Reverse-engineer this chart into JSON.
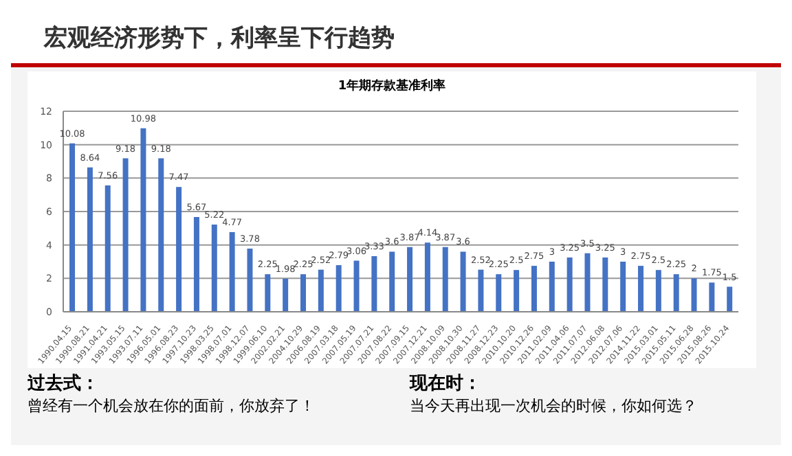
{
  "chart_data": {
    "type": "bar",
    "title": "宏观经济形势下，利率呈下行趋势",
    "subtitle": "1年期存款基准利率",
    "categories": [
      "1990.04.15",
      "1990.08.21",
      "1991.04.21",
      "1993.05.15",
      "1993.07.11",
      "1996.05.01",
      "1996.08.23",
      "1997.10.23",
      "1998.03.25",
      "1998.07.01",
      "1998.12.07",
      "1999.06.10",
      "2002.02.21",
      "2004.10.29",
      "2006.08.19",
      "2007.03.18",
      "2007.05.19",
      "2007.07.21",
      "2007.08.22",
      "2007.09.15",
      "2007.12.21",
      "2008.10.09",
      "2008.10.30",
      "2008.11.27",
      "2008.12.23",
      "2010.10.20",
      "2010.12.26",
      "2011.02.09",
      "2011.04.06",
      "2011.07.07",
      "2012.06.08",
      "2012.07.06",
      "2014.11.22",
      "2015.03.01",
      "2015.05.11",
      "2015.06.28",
      "2015.08.26",
      "2015.10.24"
    ],
    "values": [
      10.08,
      8.64,
      7.56,
      9.18,
      10.98,
      9.18,
      7.47,
      5.67,
      5.22,
      4.77,
      3.78,
      2.25,
      1.98,
      2.25,
      2.52,
      2.79,
      3.06,
      3.33,
      3.6,
      3.87,
      4.14,
      3.87,
      3.6,
      2.52,
      2.25,
      2.5,
      2.75,
      3,
      3.25,
      3.5,
      3.25,
      3,
      2.75,
      2.5,
      2.25,
      2,
      1.75,
      1.5
    ],
    "color": "#4472c4",
    "ylim": [
      0,
      12
    ],
    "yticks": [
      0,
      2,
      4,
      6,
      8,
      10,
      12
    ],
    "grid": "y",
    "data_labels": true,
    "annotations": [
      "过去式：",
      "曾经有一个机会放在你的面前，你放弃了！",
      "现在时：",
      "当今天再出现一次机会的时候，你如何选？"
    ]
  }
}
